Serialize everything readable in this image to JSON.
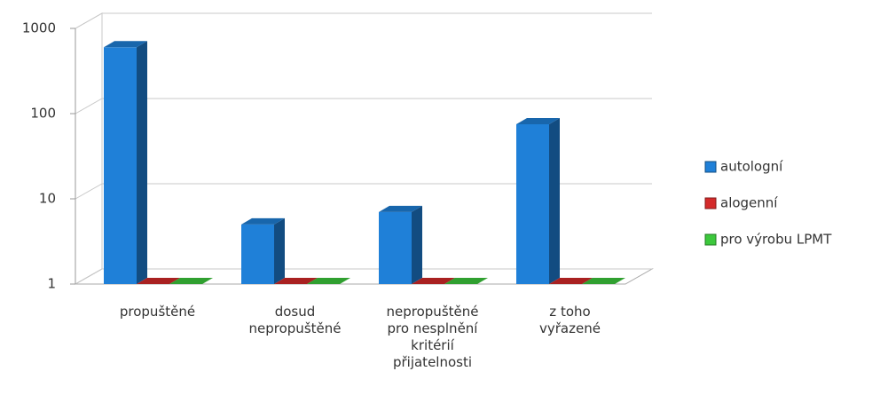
{
  "chart_data": {
    "type": "bar3d",
    "log_scale": true,
    "grid": true,
    "legend": "right",
    "categories": [
      "propuštěné",
      "dosud nepropuštěné",
      "nepropuštěné pro nesplnění kritérií přijatelnosti",
      "z toho vyřazené"
    ],
    "series": [
      {
        "name": "autologní",
        "color": "#1f80d8",
        "values": [
          600,
          5,
          7,
          75
        ]
      },
      {
        "name": "alogenní",
        "color": "#d42a2a",
        "values": [
          1,
          1,
          1,
          1
        ]
      },
      {
        "name": "pro výrobu LPMT",
        "color": "#3cc83c",
        "values": [
          1,
          1,
          1,
          1
        ]
      }
    ],
    "ylim": [
      1,
      1000
    ],
    "yticks": [
      1,
      10,
      100,
      1000
    ]
  }
}
